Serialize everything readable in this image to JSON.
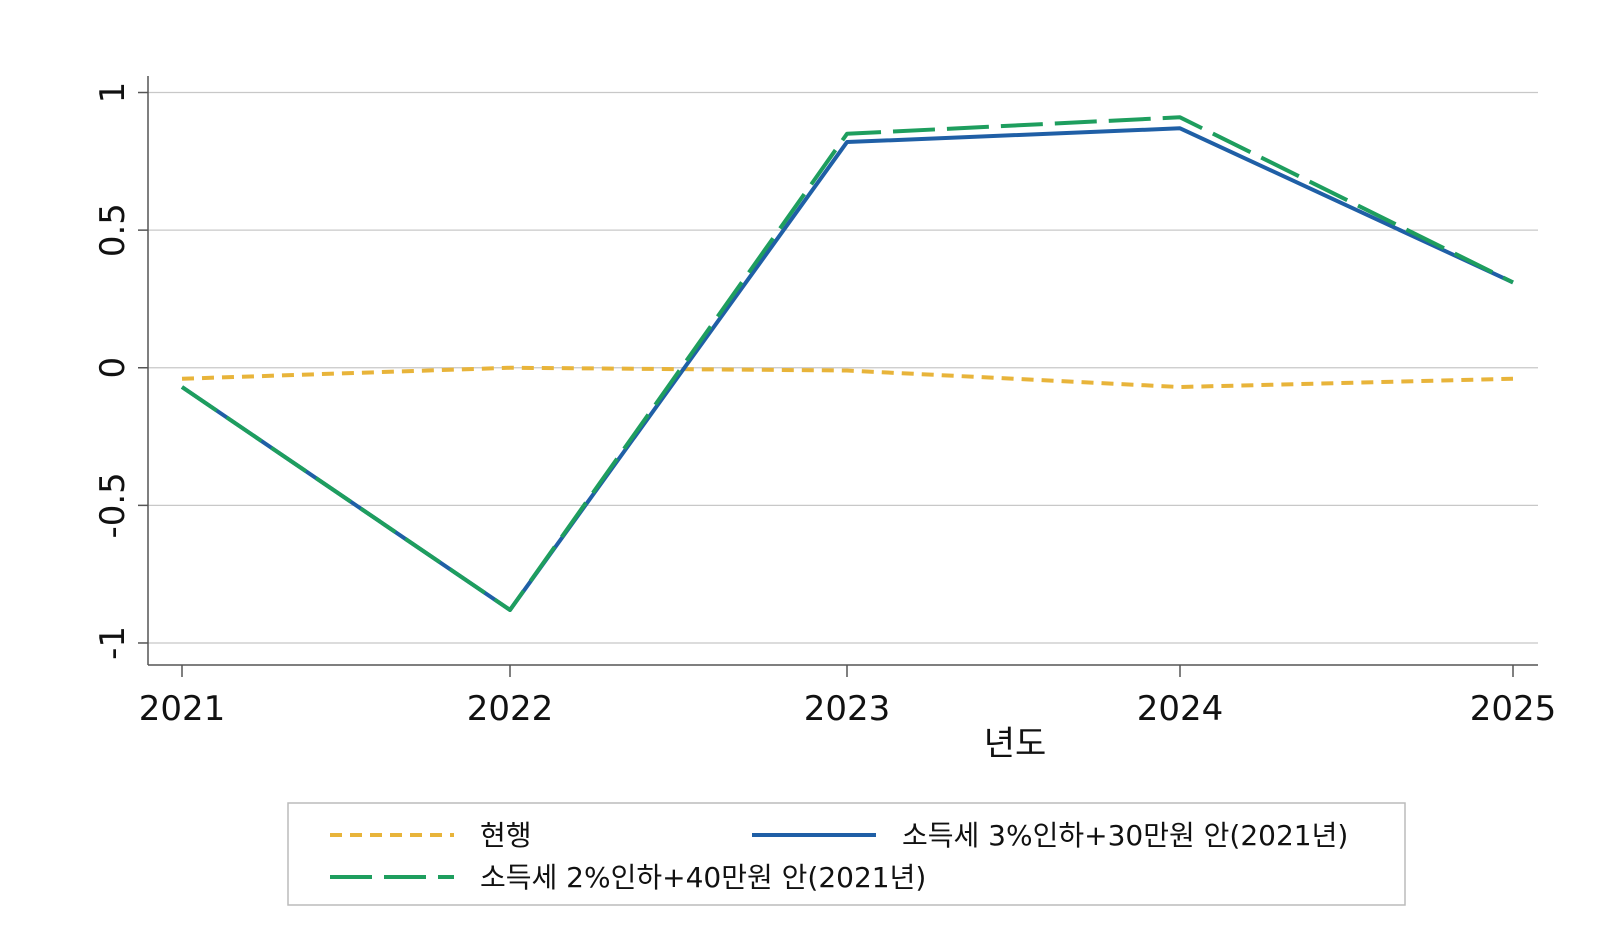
{
  "chart_data": {
    "type": "line",
    "title": "",
    "xlabel": "년도",
    "ylabel": "",
    "x": [
      2021,
      2022,
      2023,
      2024,
      2025
    ],
    "x_tick_labels": [
      "2021",
      "2022",
      "2023",
      "2024",
      "2025"
    ],
    "ylim": [
      -1.08,
      1.06
    ],
    "y_ticks": [
      1,
      0.5,
      0,
      -0.5,
      -1
    ],
    "y_tick_labels": [
      "1",
      "0.5",
      "0",
      "-0.5",
      "-1"
    ],
    "grid": true,
    "legend_position": "bottom",
    "series": [
      {
        "name": "현행",
        "values": [
          -0.04,
          0.0,
          -0.01,
          -0.07,
          -0.04
        ],
        "color": "#E8B43A",
        "style": "short-dash"
      },
      {
        "name": "소득세 3%인하+30만원 안(2021년)",
        "values": [
          -0.07,
          -0.88,
          0.82,
          0.87,
          0.31
        ],
        "color": "#1F5FA6",
        "style": "solid"
      },
      {
        "name": "소득세 2%인하+40만원 안(2021년)",
        "values": [
          -0.07,
          -0.88,
          0.85,
          0.91,
          0.31
        ],
        "color": "#1E9E5E",
        "style": "long-dash"
      }
    ]
  }
}
